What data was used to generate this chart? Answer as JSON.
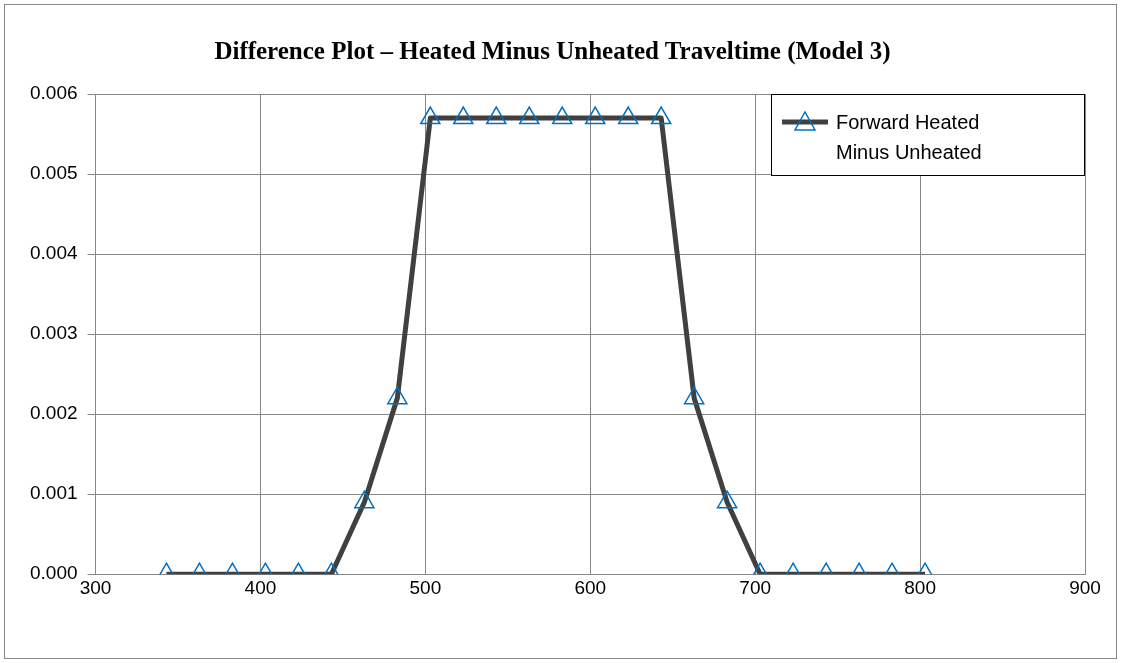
{
  "chart_data": {
    "type": "line",
    "title": "Difference Plot – Heated Minus Unheated Traveltime (Model 3)",
    "x": [
      343,
      363,
      383,
      403,
      423,
      443,
      463,
      483,
      503,
      523,
      543,
      563,
      583,
      603,
      623,
      643,
      663,
      683,
      703,
      723,
      743,
      763,
      783,
      803
    ],
    "series": [
      {
        "name": "Forward Heated Minus Unheated",
        "color": "#404040",
        "values": [
          0,
          0,
          0,
          0,
          0,
          0,
          0.0009,
          0.0022,
          0.0057,
          0.0057,
          0.0057,
          0.0057,
          0.0057,
          0.0057,
          0.0057,
          0.0057,
          0.0022,
          0.0009,
          0,
          0,
          0,
          0,
          0,
          0
        ]
      }
    ],
    "xlim": [
      300,
      900
    ],
    "xticks": [
      300,
      400,
      500,
      600,
      700,
      800,
      900
    ],
    "ylim": [
      0,
      0.006
    ],
    "yticks": [
      {
        "value": 0,
        "label": "0.000"
      },
      {
        "value": 0.001,
        "label": "0.001"
      },
      {
        "value": 0.002,
        "label": "0.002"
      },
      {
        "value": 0.003,
        "label": "0.003"
      },
      {
        "value": 0.004,
        "label": "0.004"
      },
      {
        "value": 0.005,
        "label": "0.005"
      },
      {
        "value": 0.006,
        "label": "0.006"
      }
    ],
    "grid": true,
    "legend": "top right",
    "marker": "triangle",
    "line_style": "solid"
  }
}
